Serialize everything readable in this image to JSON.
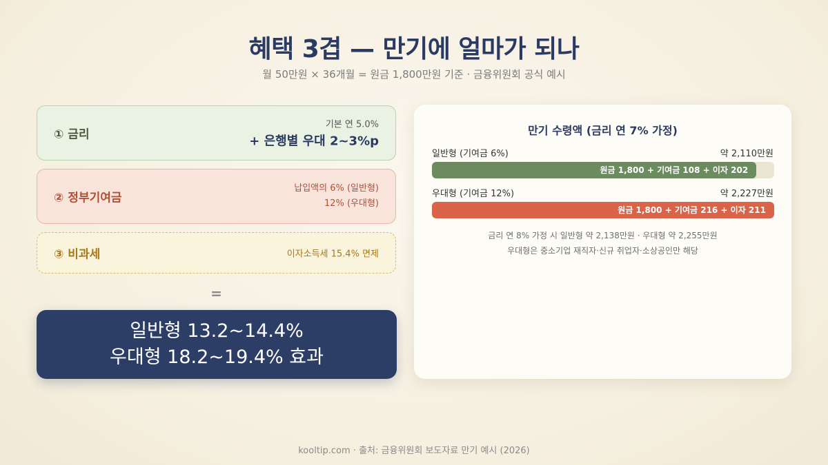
{
  "header": {
    "title": "혜택 3겹 — 만기에 얼마가 되나",
    "subtitle": "월 50만원 × 36개월 = 원금 1,800만원 기준 · 금융위원회 공식 예시"
  },
  "benefits": {
    "interest": {
      "label": "① 금리",
      "base": "기본 연 5.0%",
      "bonus": "+ 은행별 우대 2~3%p"
    },
    "contribution": {
      "label": "② 정부기여금",
      "line1": "납입액의 6% (일반형)",
      "line2": "12% (우대형)"
    },
    "tax": {
      "label": "③ 비과세",
      "detail": "이자소득세 15.4% 면제"
    }
  },
  "equals": "=",
  "result": {
    "line1": "일반형 13.2~14.4%",
    "line2": "우대형 18.2~19.4% 효과"
  },
  "panel": {
    "title": "만기 수령액 (금리 연 7% 가정)",
    "rows": [
      {
        "name": "일반형 (기여금 6%)",
        "amount": "약 2,110만원",
        "bar_text": "원금 1,800 + 기여금 108 + 이자 202",
        "fill_fraction": 0.948,
        "color": "#6b8c5f"
      },
      {
        "name": "우대형 (기여금 12%)",
        "amount": "약 2,227만원",
        "bar_text": "원금 1,800 + 기여금 216 + 이자 211",
        "fill_fraction": 1.0,
        "color": "#d9644a"
      }
    ],
    "note1": "금리 연 8% 가정 시 일반형 약 2,138만원 · 우대형 약 2,255만원",
    "note2": "우대형은 중소기업 재직자·신규 취업자·소상공인만 해당"
  },
  "footer": "kooltip.com · 출처: 금융위원회 보도자료 만기 예시 (2026)",
  "colors": {
    "navy": "#2c3d66",
    "green": "#6b8c5f",
    "coral": "#d9644a",
    "gold": "#a5781c"
  }
}
